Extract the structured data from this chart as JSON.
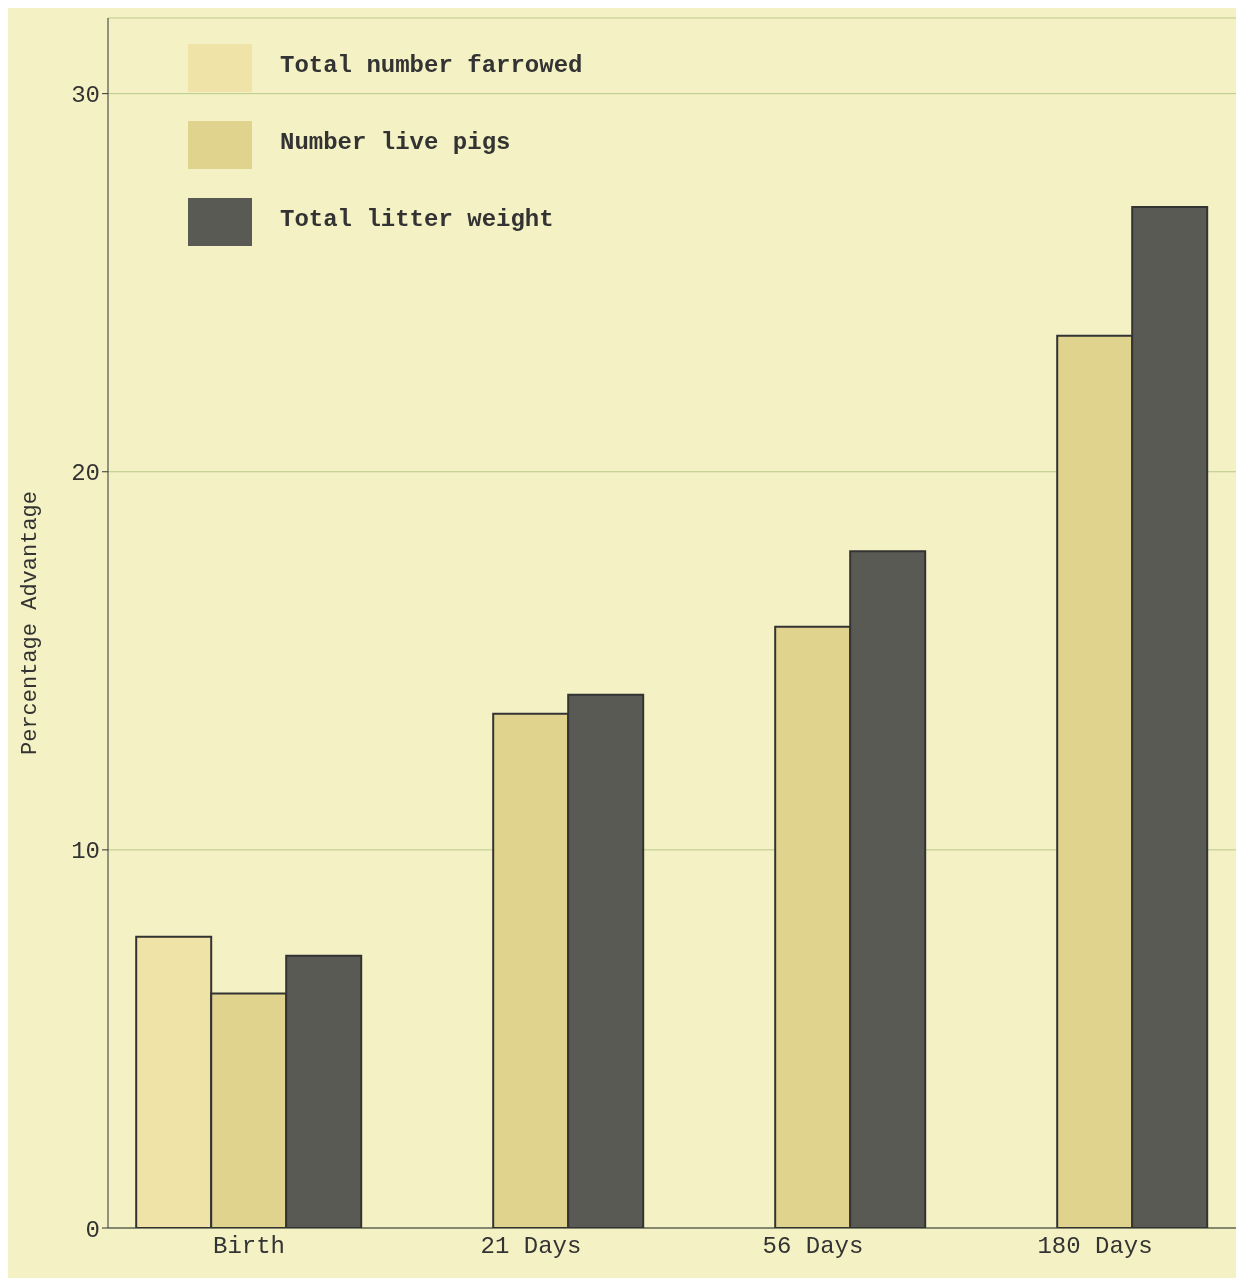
{
  "chart_data": {
    "type": "bar",
    "ylabel": "Percentage Advantage",
    "categories": [
      "Birth",
      "21 Days",
      "56 Days",
      "180 Days"
    ],
    "series": [
      {
        "name": "Total number farrowed",
        "color": "#efe3a8",
        "values": [
          7.7,
          null,
          null,
          null
        ]
      },
      {
        "name": "Number live pigs",
        "color": "#e0d38e",
        "values": [
          6.2,
          13.6,
          15.9,
          23.6
        ]
      },
      {
        "name": "Total litter weight",
        "color": "#5a5a55",
        "values": [
          7.2,
          14.1,
          17.9,
          27.0
        ]
      }
    ],
    "ylim": [
      0,
      32
    ],
    "yticks": [
      0,
      10,
      20,
      30
    ],
    "grid": "y",
    "legend": "top left"
  }
}
